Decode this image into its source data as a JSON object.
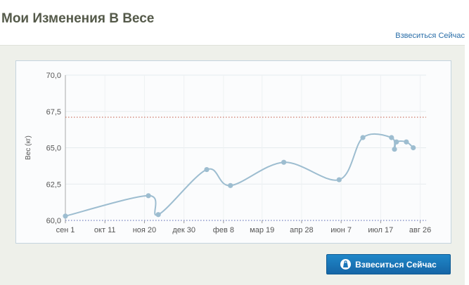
{
  "page": {
    "title": "Мои Изменения В Весе",
    "top_link": "Взвеситься Сейчас",
    "button_label": "Взвеситься Сейчас",
    "button_icon": "weight-scale-icon"
  },
  "colors": {
    "line": "#9dbdd0",
    "target_line": "#cc7766",
    "baseline": "#8b95c9",
    "button": "#1a76ba"
  },
  "chart_data": {
    "type": "line",
    "ylabel": "Вес (кг)",
    "xlabel": "",
    "ylim": [
      60.0,
      70.0
    ],
    "yticks": [
      "60,0",
      "62,5",
      "65,0",
      "67,5",
      "70,0"
    ],
    "ytick_values": [
      60.0,
      62.5,
      65.0,
      67.5,
      70.0
    ],
    "xlim": [
      "2012-09-01",
      "2013-09-01"
    ],
    "xticks": [
      {
        "label": "сен 1",
        "date": "2012-09-01"
      },
      {
        "label": "окт 11",
        "date": "2012-10-11"
      },
      {
        "label": "ноя 20",
        "date": "2012-11-20"
      },
      {
        "label": "дек 30",
        "date": "2012-12-30"
      },
      {
        "label": "фев 8",
        "date": "2013-02-08"
      },
      {
        "label": "мар 19",
        "date": "2013-03-19"
      },
      {
        "label": "апр 28",
        "date": "2013-04-28"
      },
      {
        "label": "июн 7",
        "date": "2013-06-07"
      },
      {
        "label": "июл 17",
        "date": "2013-07-17"
      },
      {
        "label": "авг 26",
        "date": "2013-08-26"
      }
    ],
    "target_weight": 67.1,
    "grid": true,
    "series": [
      {
        "points": [
          {
            "x": "2012-09-01",
            "y": 60.3
          },
          {
            "x": "2012-11-24",
            "y": 61.7
          },
          {
            "x": "2012-12-04",
            "y": 60.4
          },
          {
            "x": "2013-01-22",
            "y": 63.5
          },
          {
            "x": "2013-02-15",
            "y": 62.4
          },
          {
            "x": "2013-04-10",
            "y": 64.0
          },
          {
            "x": "2013-06-05",
            "y": 62.8
          },
          {
            "x": "2013-06-29",
            "y": 65.7
          },
          {
            "x": "2013-07-28",
            "y": 65.7
          },
          {
            "x": "2013-07-31",
            "y": 64.9
          },
          {
            "x": "2013-08-02",
            "y": 65.4
          },
          {
            "x": "2013-08-12",
            "y": 65.4
          },
          {
            "x": "2013-08-19",
            "y": 65.0
          }
        ]
      }
    ]
  }
}
